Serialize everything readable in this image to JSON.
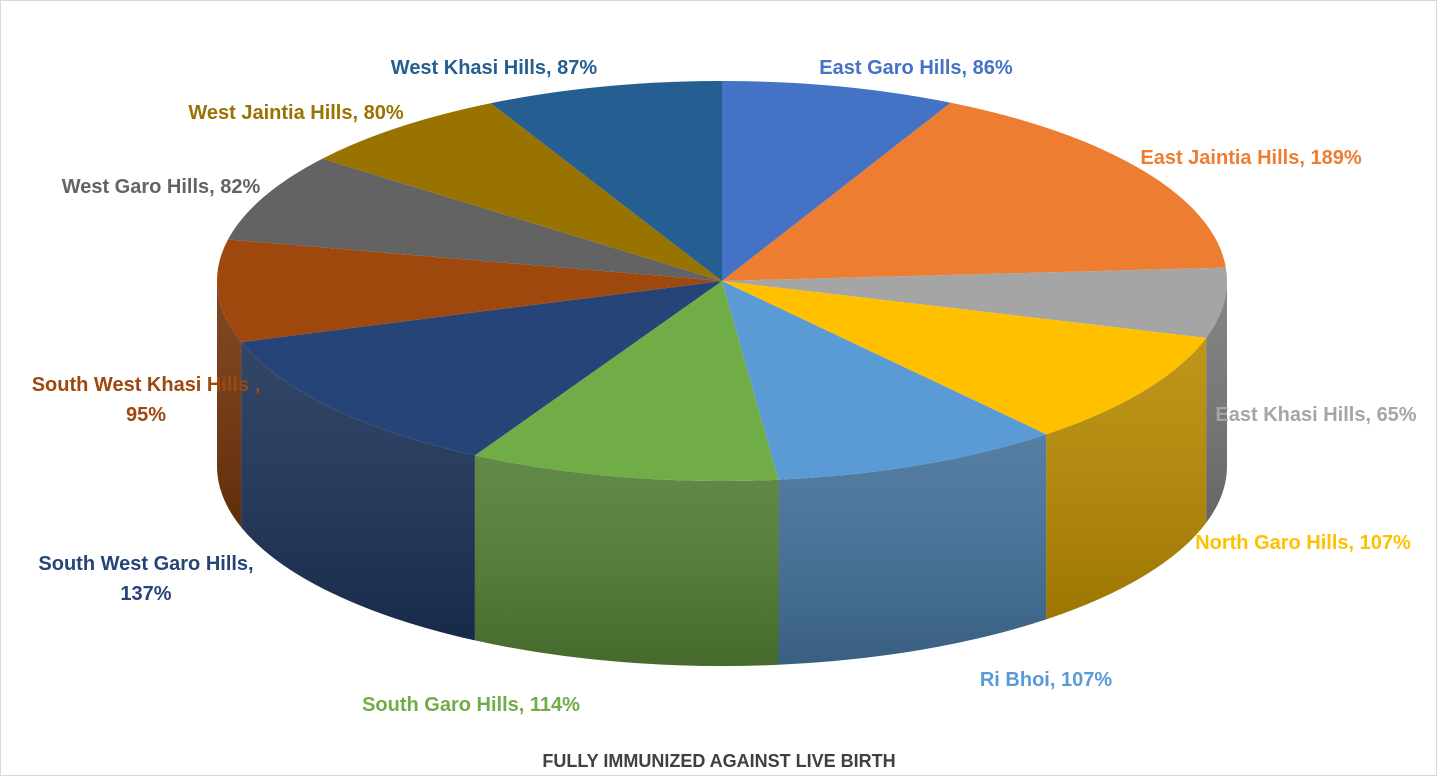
{
  "chart_data": {
    "type": "pie",
    "style": "3d",
    "title": "FULLY IMMUNIZED AGAINST LIVE BIRTH",
    "unit": "%",
    "legend": "none",
    "slices": [
      {
        "label": "East Garo Hills",
        "value": 86,
        "display": "East Garo Hills, 86%",
        "color": "#4472C4"
      },
      {
        "label": "East Jaintia Hills",
        "value": 189,
        "display": "East Jaintia Hills, 189%",
        "color": "#ED7D31"
      },
      {
        "label": "East Khasi Hills",
        "value": 65,
        "display": "East Khasi Hills, 65%",
        "color": "#A5A5A5"
      },
      {
        "label": "North Garo Hills",
        "value": 107,
        "display": "North Garo Hills, 107%",
        "color": "#FFC000"
      },
      {
        "label": "Ri Bhoi",
        "value": 107,
        "display": "Ri Bhoi, 107%",
        "color": "#5B9BD5"
      },
      {
        "label": "South Garo Hills",
        "value": 114,
        "display": "South Garo Hills, 114%",
        "color": "#70AD47"
      },
      {
        "label": "South West Garo Hills",
        "value": 137,
        "display": "South West Garo Hills, 137%",
        "color": "#264478"
      },
      {
        "label": "South West Khasi Hills",
        "value": 95,
        "display": "South West Khasi Hills , 95%",
        "color": "#9E480E"
      },
      {
        "label": "West Garo Hills",
        "value": 82,
        "display": "West Garo Hills, 82%",
        "color": "#636363"
      },
      {
        "label": "West Jaintia Hills",
        "value": 80,
        "display": "West Jaintia Hills, 80%",
        "color": "#997300"
      },
      {
        "label": "West Khasi Hills",
        "value": 87,
        "display": "West Khasi Hills, 87%",
        "color": "#255E91"
      }
    ]
  }
}
